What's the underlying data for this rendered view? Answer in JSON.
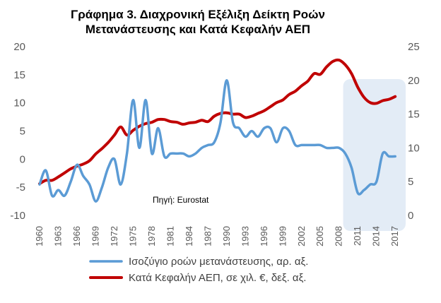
{
  "chart_data": {
    "type": "line",
    "title": [
      "Γράφημα 3. Διαχρονική Εξέλιξη Δείκτη Ροών",
      "Μετανάστευσης και Κατά Κεφαλήν ΑΕΠ"
    ],
    "source_note": "Πηγή: Eurostat",
    "x_tick_labels": [
      "1960",
      "1963",
      "1966",
      "1969",
      "1972",
      "1975",
      "1978",
      "1981",
      "1984",
      "1987",
      "1990",
      "1993",
      "1996",
      "1999",
      "2002",
      "2005",
      "2008",
      "2011",
      "2014",
      "2017"
    ],
    "y_left": {
      "ylim": [
        -10,
        20
      ],
      "ticks": [
        "-10",
        "-5",
        "0",
        "5",
        "10",
        "15",
        "20"
      ]
    },
    "y_right": {
      "ylim": [
        0,
        25
      ],
      "ticks": [
        "0",
        "5",
        "10",
        "15",
        "20",
        "25"
      ]
    },
    "highlight_range": [
      2009,
      2018
    ],
    "legend_position": "bottom",
    "series": [
      {
        "name": "Ισοζύγιο ροών μετανάστευσης, αρ. αξ.",
        "axis": "left",
        "color": "#5b9bd5",
        "x": [
          1960,
          1961,
          1962,
          1963,
          1964,
          1965,
          1966,
          1967,
          1968,
          1969,
          1970,
          1971,
          1972,
          1973,
          1974,
          1975,
          1976,
          1977,
          1978,
          1979,
          1980,
          1981,
          1982,
          1983,
          1984,
          1985,
          1986,
          1987,
          1988,
          1989,
          1990,
          1991,
          1992,
          1993,
          1994,
          1995,
          1996,
          1997,
          1998,
          1999,
          2000,
          2001,
          2002,
          2003,
          2004,
          2005,
          2006,
          2007,
          2008,
          2009,
          2010,
          2011,
          2012,
          2013,
          2014,
          2015,
          2016,
          2017
        ],
        "values": [
          -4.5,
          -2,
          -6.5,
          -5.5,
          -6.5,
          -4,
          -1,
          -3,
          -4.5,
          -7.5,
          -5,
          -1.5,
          0,
          -4.5,
          1,
          10.5,
          2,
          10.5,
          1,
          5.5,
          0.5,
          1,
          1,
          1,
          0.5,
          1,
          2,
          2.5,
          3,
          6.5,
          14,
          6.5,
          5.5,
          4,
          5,
          4,
          5.5,
          5.5,
          3,
          5.5,
          5,
          2.5,
          2.5,
          2.5,
          2.5,
          2.5,
          2,
          2,
          2,
          1,
          -1.5,
          -6,
          -5.5,
          -4.5,
          -4,
          1,
          0.5,
          0.5
        ]
      },
      {
        "name": "Κατά Κεφαλήν ΑΕΠ, σε χιλ. €, δεξ. αξ.",
        "axis": "right",
        "color": "#c00000",
        "x": [
          1960,
          1961,
          1962,
          1963,
          1964,
          1965,
          1966,
          1967,
          1968,
          1969,
          1970,
          1971,
          1972,
          1973,
          1974,
          1975,
          1976,
          1977,
          1978,
          1979,
          1980,
          1981,
          1982,
          1983,
          1984,
          1985,
          1986,
          1987,
          1988,
          1989,
          1990,
          1991,
          1992,
          1993,
          1994,
          1995,
          1996,
          1997,
          1998,
          1999,
          2000,
          2001,
          2002,
          2003,
          2004,
          2005,
          2006,
          2007,
          2008,
          2009,
          2010,
          2011,
          2012,
          2013,
          2014,
          2015,
          2016,
          2017
        ],
        "values": [
          4.7,
          5.2,
          5.2,
          5.7,
          6.3,
          6.9,
          7.3,
          7.6,
          8.1,
          9.1,
          9.9,
          10.8,
          11.9,
          13.1,
          11.9,
          12.6,
          13.2,
          13.6,
          13.8,
          14.2,
          14.2,
          13.9,
          13.8,
          13.5,
          13.7,
          13.8,
          14.1,
          13.9,
          14.7,
          15.1,
          15.2,
          15.0,
          15.0,
          14.5,
          14.7,
          15.1,
          15.5,
          16.1,
          16.7,
          17.1,
          17.9,
          18.4,
          19.2,
          19.9,
          21.0,
          20.9,
          22.0,
          22.8,
          23.0,
          22.3,
          21.0,
          19.0,
          17.5,
          16.7,
          16.6,
          17.0,
          17.2,
          17.6
        ]
      }
    ]
  }
}
